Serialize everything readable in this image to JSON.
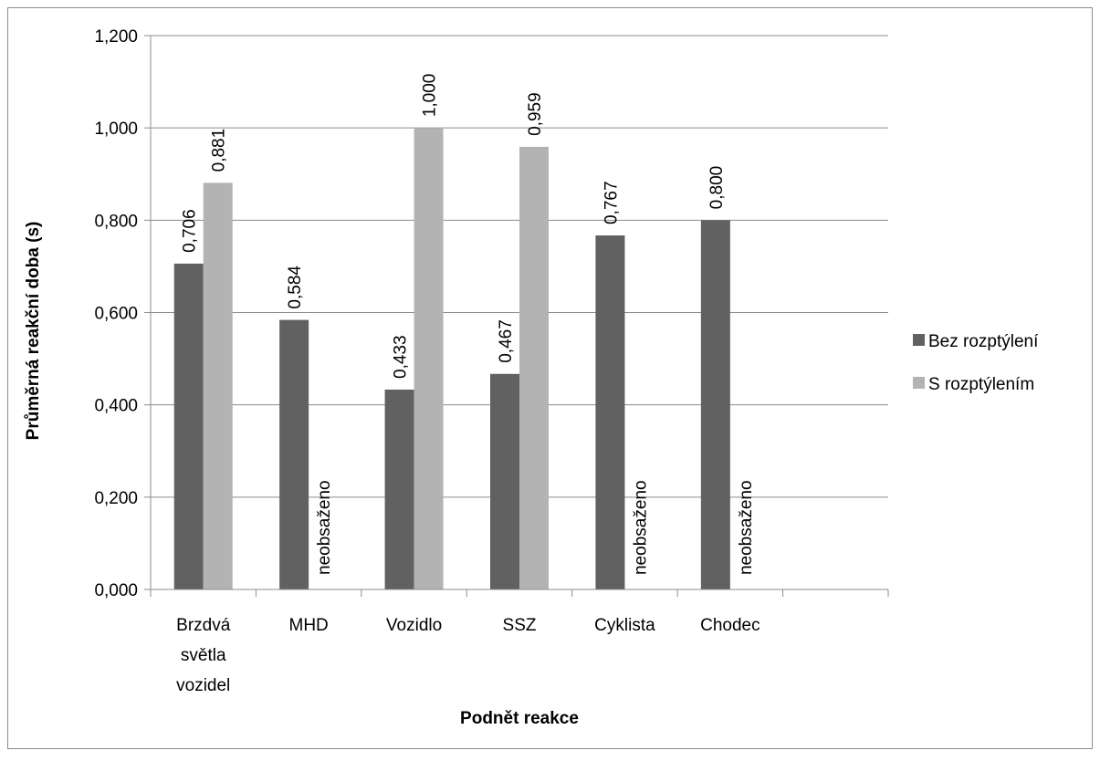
{
  "chart_data": {
    "type": "bar",
    "xlabel": "Podnět reakce",
    "ylabel": "Průměrná reakční doba (s)",
    "ylim": [
      0,
      1.2
    ],
    "yticks": [
      "0,000",
      "0,200",
      "0,400",
      "0,600",
      "0,800",
      "1,000",
      "1,200"
    ],
    "grid": true,
    "legend_position": "right",
    "categories": [
      [
        "Brzdvá",
        "světla",
        "vozidel"
      ],
      [
        "MHD"
      ],
      [
        "Vozidlo"
      ],
      [
        "SSZ"
      ],
      [
        "Cyklista"
      ],
      [
        "Chodec"
      ],
      []
    ],
    "series": [
      {
        "name": "Bez rozptýlení",
        "color": "#616161",
        "values": [
          0.706,
          0.584,
          0.433,
          0.467,
          0.767,
          0.8,
          null
        ],
        "labels": [
          "0,706",
          "0,584",
          "0,433",
          "0,467",
          "0,767",
          "0,800",
          null
        ]
      },
      {
        "name": "S rozptýlením",
        "color": "#b3b3b3",
        "values": [
          0.881,
          null,
          1.0,
          0.959,
          null,
          null,
          null
        ],
        "labels": [
          "0,881",
          "neobsaženo",
          "1,000",
          "0,959",
          "neobsaženo",
          "neobsaženo",
          null
        ]
      }
    ]
  }
}
